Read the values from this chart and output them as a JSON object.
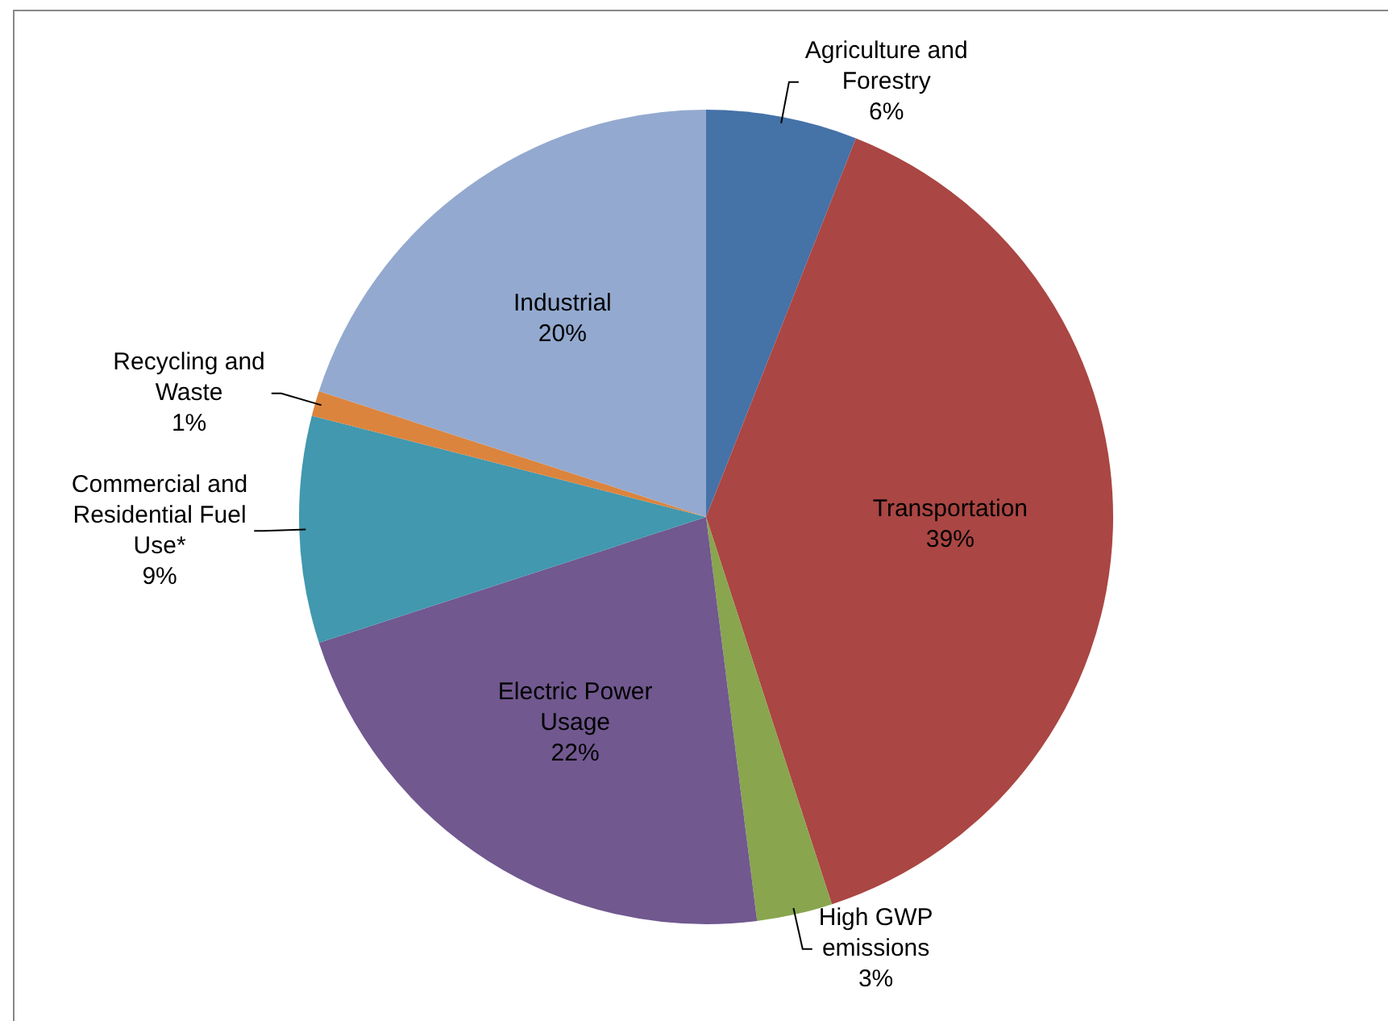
{
  "chart_data": {
    "type": "pie",
    "categories": [
      "Agriculture and Forestry",
      "Transportation",
      "High GWP emissions",
      "Electric Power Usage",
      "Commercial and Residential Fuel Use*",
      "Recycling and Waste",
      "Industrial"
    ],
    "values": [
      6,
      39,
      3,
      22,
      9,
      1,
      20
    ],
    "colors": [
      "#4572a7",
      "#aa4643",
      "#89a54e",
      "#71588f",
      "#4198af",
      "#db843d",
      "#93a9cf"
    ],
    "value_labels": [
      "6%",
      "39%",
      "3%",
      "22%",
      "9%",
      "1%",
      "20%"
    ],
    "legend": false
  }
}
